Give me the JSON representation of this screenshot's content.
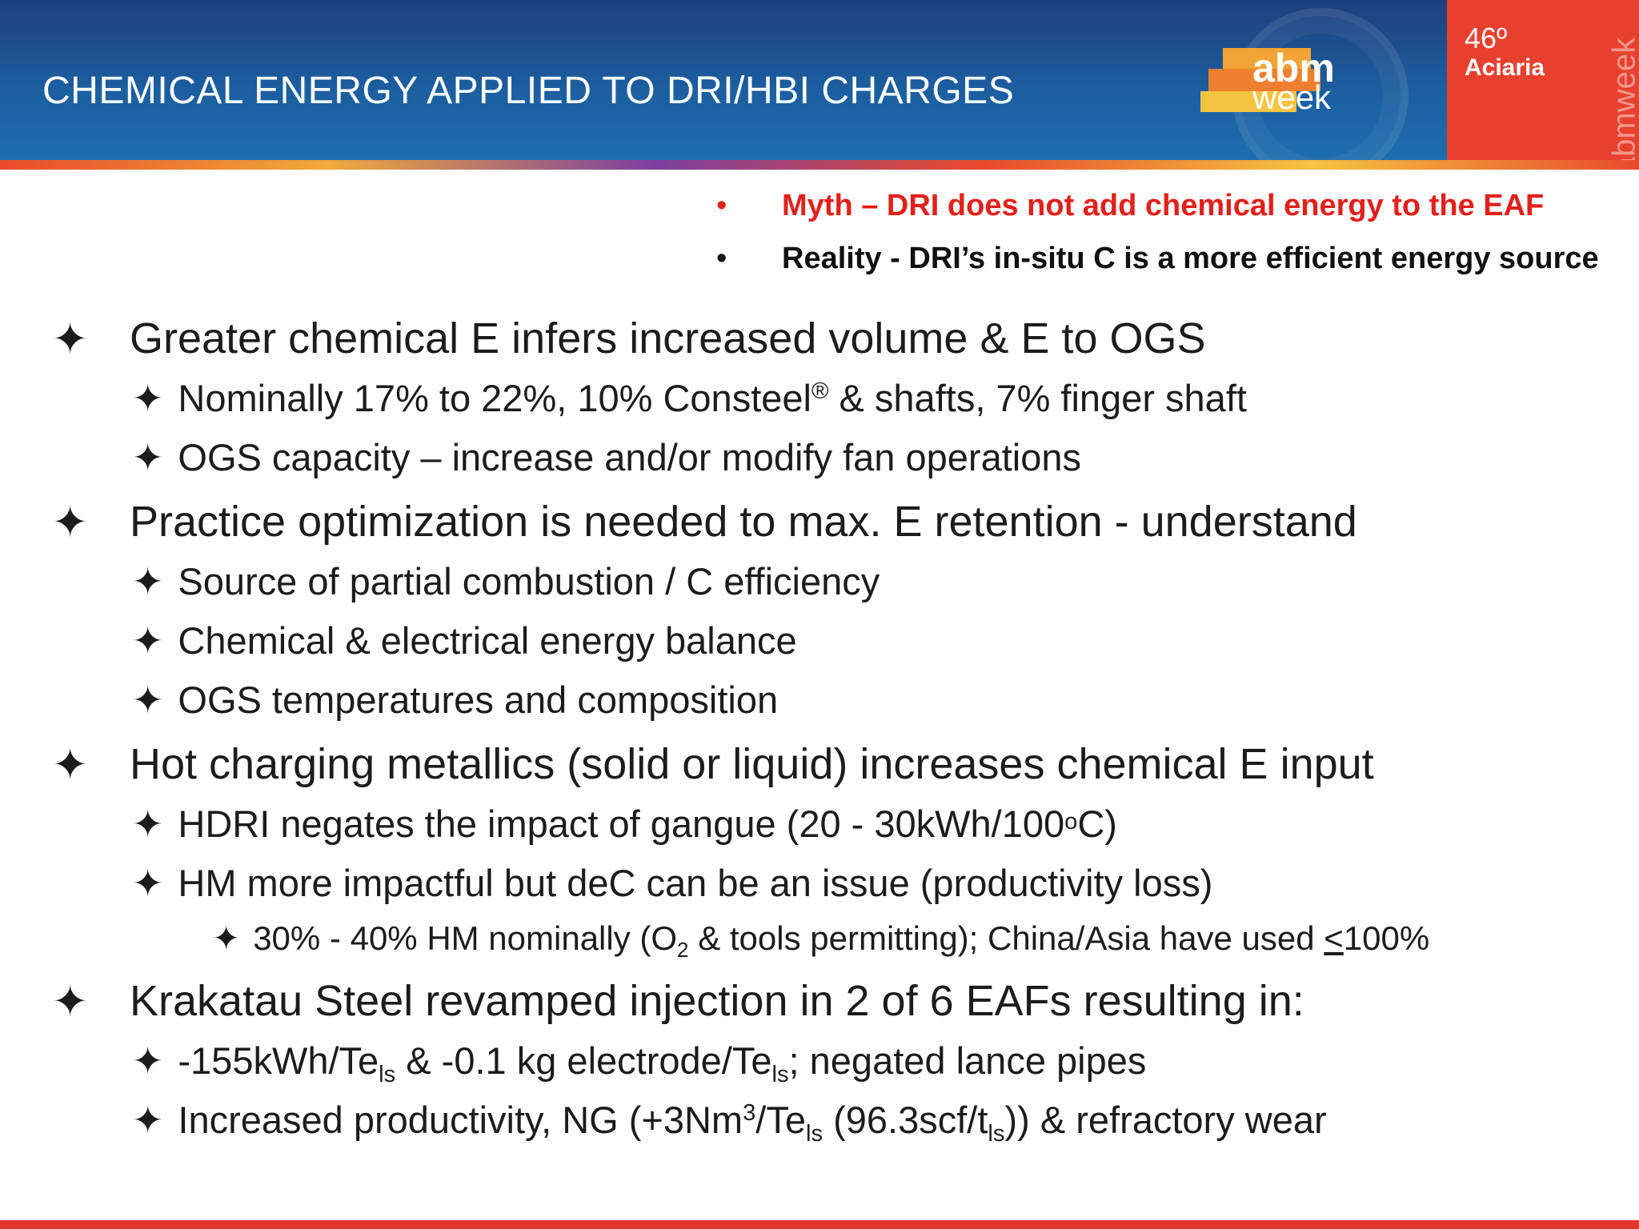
{
  "header": {
    "title": "CHEMICAL ENERGY APPLIED TO DRI/HBI CHARGES",
    "logo_abm": "abm",
    "logo_week": "week",
    "edition": "46º",
    "edition_sub": "Aciaria",
    "vertical_brand": "abmweek"
  },
  "callouts": [
    {
      "bullet": "•",
      "text": "Myth – DRI does not add chemical energy to the EAF"
    },
    {
      "bullet": "•",
      "text": "Reality - DRI’s in-situ C is a more efficient energy source"
    }
  ],
  "bullet_glyph": "✦",
  "points": [
    {
      "text": "Greater chemical E infers increased volume & E to OGS"
    },
    {
      "a": "Nominally 17% to 22%, 10% Consteel",
      "sup": "®",
      "b": " & shafts, 7% finger shaft"
    },
    {
      "text": "OGS capacity – increase and/or modify fan operations"
    },
    {
      "text": "Practice optimization is needed to max. E retention - understand"
    },
    {
      "text": "Source of partial combustion / C efficiency"
    },
    {
      "text": "Chemical & electrical energy balance"
    },
    {
      "text": "OGS temperatures and composition"
    },
    {
      "text": "Hot charging metallics (solid or liquid) increases chemical E input"
    },
    {
      "a": "HDRI negates the impact of gangue (20 - 30kWh/100",
      "sub": "o",
      "b": "C)"
    },
    {
      "text": "HM more impactful but deC can be an issue (productivity loss)"
    },
    {
      "a": "30% - 40% HM nominally (O",
      "sub": "2",
      "b": " & tools permitting); China/Asia have used ",
      "c": "<",
      "d": "100%"
    },
    {
      "text": "Krakatau Steel revamped injection in 2 of 6 EAFs resulting in:"
    },
    {
      "a": "-155kWh/Te",
      "sub1": "ls",
      "b": " & -0.1 kg electrode/Te",
      "sub2": "ls",
      "c": "; negated lance pipes"
    },
    {
      "a": "Increased productivity, NG (+3Nm",
      "sup": "3",
      "b": "/Te",
      "sub1": "ls",
      "c": " (96.3scf/t",
      "sub2": "ls",
      "d": ")) & refractory wear"
    }
  ]
}
